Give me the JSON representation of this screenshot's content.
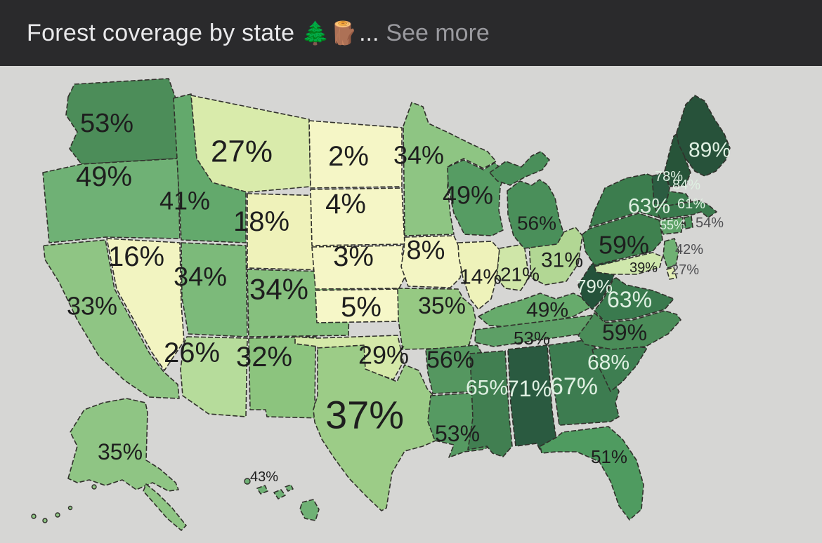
{
  "header": {
    "title": "Forest coverage by state",
    "emojis": "🌲🪵",
    "ellipsis": "...",
    "see_more": "See more"
  },
  "colors": {
    "header_bg": "#2a2a2c",
    "header_text": "#e9e9eb",
    "see_more_text": "#9a9a9f",
    "map_bg": "#d6d6d4",
    "state_border": "#31312c",
    "label_dark": "#1e1e1e",
    "label_light": "#dff0e2",
    "label_out": "#4f4f52"
  },
  "chart_data": {
    "type": "choropleth",
    "title": "Forest coverage by state",
    "region": "United States",
    "unit": "%",
    "legend": "darker green = higher forest coverage, pale yellow = lower",
    "states": [
      {
        "code": "WA",
        "name": "Washington",
        "value": 53,
        "label": "53%",
        "fill": "#4c8d59",
        "label_style": "dark"
      },
      {
        "code": "OR",
        "name": "Oregon",
        "value": 49,
        "label": "49%",
        "fill": "#6fb175",
        "label_style": "dark"
      },
      {
        "code": "ID",
        "name": "Idaho",
        "value": 41,
        "label": "41%",
        "fill": "#63a96c",
        "label_style": "dark"
      },
      {
        "code": "MT",
        "name": "Montana",
        "value": 27,
        "label": "27%",
        "fill": "#d9ebab",
        "label_style": "dark"
      },
      {
        "code": "WY",
        "name": "Wyoming",
        "value": 18,
        "label": "18%",
        "fill": "#eff2ba",
        "label_style": "dark"
      },
      {
        "code": "NV",
        "name": "Nevada",
        "value": 16,
        "label": "16%",
        "fill": "#f2f4c1",
        "label_style": "dark"
      },
      {
        "code": "CA",
        "name": "California",
        "value": 33,
        "label": "33%",
        "fill": "#8fc584",
        "label_style": "dark"
      },
      {
        "code": "UT",
        "name": "Utah",
        "value": 34,
        "label": "34%",
        "fill": "#7cba7a",
        "label_style": "dark"
      },
      {
        "code": "CO",
        "name": "Colorado",
        "value": 34,
        "label": "34%",
        "fill": "#86c07e",
        "label_style": "dark"
      },
      {
        "code": "AZ",
        "name": "Arizona",
        "value": 26,
        "label": "26%",
        "fill": "#b6dc9b",
        "label_style": "dark"
      },
      {
        "code": "NM",
        "name": "New Mexico",
        "value": 32,
        "label": "32%",
        "fill": "#8cc47e",
        "label_style": "dark"
      },
      {
        "code": "ND",
        "name": "North Dakota",
        "value": 2,
        "label": "2%",
        "fill": "#f5f6c6",
        "label_style": "dark"
      },
      {
        "code": "SD",
        "name": "South Dakota",
        "value": 4,
        "label": "4%",
        "fill": "#f5f6c6",
        "label_style": "dark"
      },
      {
        "code": "NE",
        "name": "Nebraska",
        "value": 3,
        "label": "3%",
        "fill": "#f5f6c6",
        "label_style": "dark"
      },
      {
        "code": "KS",
        "name": "Kansas",
        "value": 5,
        "label": "5%",
        "fill": "#f6f7c8",
        "label_style": "dark"
      },
      {
        "code": "OK",
        "name": "Oklahoma",
        "value": 29,
        "label": "29%",
        "fill": "#d5e9a9",
        "label_style": "dark"
      },
      {
        "code": "TX",
        "name": "Texas",
        "value": 37,
        "label": "37%",
        "fill": "#9ccc87",
        "label_style": "dark"
      },
      {
        "code": "MN",
        "name": "Minnesota",
        "value": 34,
        "label": "34%",
        "fill": "#8ec583",
        "label_style": "dark"
      },
      {
        "code": "IA",
        "name": "Iowa",
        "value": 8,
        "label": "8%",
        "fill": "#f3f5c3",
        "label_style": "dark"
      },
      {
        "code": "MO",
        "name": "Missouri",
        "value": 35,
        "label": "35%",
        "fill": "#96c983",
        "label_style": "dark"
      },
      {
        "code": "AR",
        "name": "Arkansas",
        "value": 56,
        "label": "56%",
        "fill": "#559760",
        "label_style": "dark"
      },
      {
        "code": "LA",
        "name": "Louisiana",
        "value": 53,
        "label": "53%",
        "fill": "#569a62",
        "label_style": "dark"
      },
      {
        "code": "WI",
        "name": "Wisconsin",
        "value": 49,
        "label": "49%",
        "fill": "#569c63",
        "label_style": "dark"
      },
      {
        "code": "IL",
        "name": "Illinois",
        "value": 14,
        "label": "14%",
        "fill": "#eef2ba",
        "label_style": "dark"
      },
      {
        "code": "IN",
        "name": "Indiana",
        "value": 21,
        "label": "21%",
        "fill": "#cfe6a8",
        "label_style": "dark"
      },
      {
        "code": "OH",
        "name": "Ohio",
        "value": 31,
        "label": "31%",
        "fill": "#b2d794",
        "label_style": "dark"
      },
      {
        "code": "MI",
        "name": "Michigan",
        "value": 56,
        "label": "56%",
        "fill": "#4a8f5a",
        "label_style": "dark"
      },
      {
        "code": "KY",
        "name": "Kentucky",
        "value": 49,
        "label": "49%",
        "fill": "#67ab6c",
        "label_style": "dark"
      },
      {
        "code": "TN",
        "name": "Tennessee",
        "value": 53,
        "label": "53%",
        "fill": "#5d9f66",
        "label_style": "dark"
      },
      {
        "code": "MS",
        "name": "Mississippi",
        "value": 65,
        "label": "65%",
        "fill": "#417f51",
        "label_style": "light"
      },
      {
        "code": "AL",
        "name": "Alabama",
        "value": 71,
        "label": "71%",
        "fill": "#2a5a40",
        "label_style": "light"
      },
      {
        "code": "GA",
        "name": "Georgia",
        "value": 67,
        "label": "67%",
        "fill": "#3d7c50",
        "label_style": "light"
      },
      {
        "code": "FL",
        "name": "Florida",
        "value": 51,
        "label": "51%",
        "fill": "#4f9b60",
        "label_style": "dark"
      },
      {
        "code": "SC",
        "name": "South Carolina",
        "value": 68,
        "label": "68%",
        "fill": "#3e7e51",
        "label_style": "light"
      },
      {
        "code": "NC",
        "name": "North Carolina",
        "value": 59,
        "label": "59%",
        "fill": "#4a8c58",
        "label_style": "dark"
      },
      {
        "code": "VA",
        "name": "Virginia",
        "value": 63,
        "label": "63%",
        "fill": "#3a7a4e",
        "label_style": "light"
      },
      {
        "code": "WV",
        "name": "West Virginia",
        "value": 79,
        "label": "79%",
        "fill": "#24523a",
        "label_style": "light"
      },
      {
        "code": "MD",
        "name": "Maryland",
        "value": 39,
        "label": "39%",
        "fill": "#cfe7ac",
        "label_style": "dark"
      },
      {
        "code": "DE",
        "name": "Delaware",
        "value": 27,
        "label": "27%",
        "fill": "#e4efb5",
        "label_style": "out"
      },
      {
        "code": "NJ",
        "name": "New Jersey",
        "value": 42,
        "label": "42%",
        "fill": "#6fb173",
        "label_style": "out"
      },
      {
        "code": "PA",
        "name": "Pennsylvania",
        "value": 59,
        "label": "59%",
        "fill": "#3f814f",
        "label_style": "dark"
      },
      {
        "code": "NY",
        "name": "New York",
        "value": 63,
        "label": "63%",
        "fill": "#3c7d4e",
        "label_style": "light"
      },
      {
        "code": "CT",
        "name": "Connecticut",
        "value": 55,
        "label": "55%",
        "fill": "#5fa369",
        "label_style": "light"
      },
      {
        "code": "RI",
        "name": "Rhode Island",
        "value": 54,
        "label": "54%",
        "fill": "#4a8f5a",
        "label_style": "out"
      },
      {
        "code": "MA",
        "name": "Massachusetts",
        "value": 61,
        "label": "61%",
        "fill": "#3a7a4d",
        "label_style": "light"
      },
      {
        "code": "VT",
        "name": "Vermont",
        "value": 78,
        "label": "78%",
        "fill": "#2b5c41",
        "label_style": "light"
      },
      {
        "code": "NH",
        "name": "New Hampshire",
        "value": 84,
        "label": "84%",
        "fill": "#275439",
        "label_style": "light"
      },
      {
        "code": "ME",
        "name": "Maine",
        "value": 89,
        "label": "89%",
        "fill": "#27523a",
        "label_style": "light"
      },
      {
        "code": "AK",
        "name": "Alaska",
        "value": 35,
        "label": "35%",
        "fill": "#8fc584",
        "label_style": "dark"
      },
      {
        "code": "HI",
        "name": "Hawaii",
        "value": 43,
        "label": "43%",
        "fill": "#6fb175",
        "label_style": "dark"
      }
    ]
  }
}
